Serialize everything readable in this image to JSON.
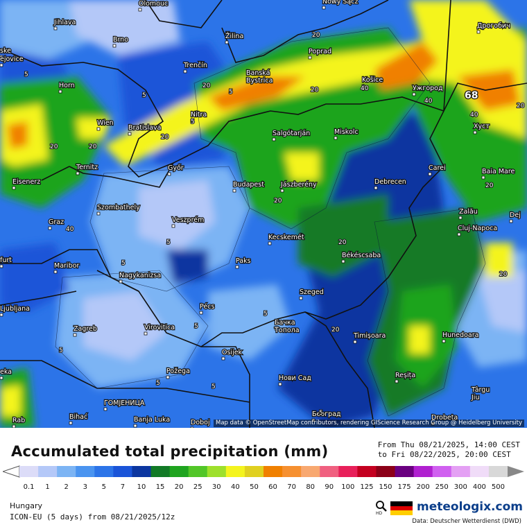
{
  "map": {
    "attribution": "Map data © OpenStreetMap contributors, rendering GIScience Research Group @ Heidelberg University",
    "max_value": "68",
    "cities": [
      {
        "name": "Olomouc"
      },
      {
        "name": "Nowy Sącz"
      },
      {
        "name": "Дрогобич"
      },
      {
        "name": "Jihlava"
      },
      {
        "name": "Brno"
      },
      {
        "name": "Žilina"
      },
      {
        "name": "Poprad"
      },
      {
        "name": "Trenčín"
      },
      {
        "name": "Banská Bystrica"
      },
      {
        "name": "Horn"
      },
      {
        "name": "Košice"
      },
      {
        "name": "Ужгород"
      },
      {
        "name": "Nitra"
      },
      {
        "name": "Wien"
      },
      {
        "name": "Bratislava"
      },
      {
        "name": "Miskolc"
      },
      {
        "name": "Salgótarján"
      },
      {
        "name": "Хуст"
      },
      {
        "name": "Ternitz"
      },
      {
        "name": "Győr"
      },
      {
        "name": "Carei"
      },
      {
        "name": "Baia Mare"
      },
      {
        "name": "Eisenerz"
      },
      {
        "name": "Budapest"
      },
      {
        "name": "Jászberény"
      },
      {
        "name": "Debrecen"
      },
      {
        "name": "Szombathely"
      },
      {
        "name": "Zalău"
      },
      {
        "name": "Dej"
      },
      {
        "name": "Graz"
      },
      {
        "name": "Veszprém"
      },
      {
        "name": "Kecskemét"
      },
      {
        "name": "Cluj-Napoca"
      },
      {
        "name": "Maribor"
      },
      {
        "name": "Paks"
      },
      {
        "name": "Békéscsaba"
      },
      {
        "name": "Nagykanizsa"
      },
      {
        "name": "Szeged"
      },
      {
        "name": "Ljubljana"
      },
      {
        "name": "Pécs"
      },
      {
        "name": "Бачка Топола"
      },
      {
        "name": "Zagreb"
      },
      {
        "name": "Virovitica"
      },
      {
        "name": "Timișoara"
      },
      {
        "name": "Hunedoara"
      },
      {
        "name": "Osijek"
      },
      {
        "name": "Požega"
      },
      {
        "name": "Нови Сад"
      },
      {
        "name": "Reșița"
      },
      {
        "name": "Târgu Jiu"
      },
      {
        "name": "ГОМЈЕНИЦА"
      },
      {
        "name": "Bihać"
      },
      {
        "name": "Banja Luka"
      },
      {
        "name": "Doboj"
      },
      {
        "name": "Београд"
      },
      {
        "name": "Drobeta"
      },
      {
        "name": "furt"
      },
      {
        "name": "ske"
      },
      {
        "name": "ejovice"
      },
      {
        "name": "Rab"
      },
      {
        "name": "eka"
      }
    ],
    "contour_labels": [
      "5",
      "5",
      "5",
      "5",
      "5",
      "5",
      "5",
      "5",
      "5",
      "20",
      "20",
      "20",
      "20",
      "20",
      "20",
      "20",
      "40",
      "40",
      "40",
      "40",
      "20",
      "20",
      "20",
      "20",
      "20",
      "5",
      "5",
      "5"
    ]
  },
  "footer": {
    "title": "Accumulated total precipitation (mm)",
    "period_from": "From Thu 08/21/2025, 14:00 CEST",
    "period_to": "to Fri 08/22/2025, 20:00 CEST",
    "region": "Hungary",
    "model": "ICON-EU (5 days) from 08/21/2025/12z",
    "brand": "meteologix.com",
    "data_source": "Data: Deutscher Wetterdienst (DWD)",
    "legend": {
      "labels": [
        "0.1",
        "1",
        "2",
        "3",
        "5",
        "7",
        "10",
        "15",
        "20",
        "25",
        "30",
        "40",
        "50",
        "60",
        "70",
        "80",
        "90",
        "100",
        "125",
        "150",
        "175",
        "200",
        "250",
        "300",
        "400",
        "500"
      ],
      "colors": [
        "#dcdcf8",
        "#b4c8f8",
        "#7cb4f4",
        "#4a94f0",
        "#2c74e8",
        "#1a54d8",
        "#0c36a0",
        "#127a26",
        "#1fa41f",
        "#52c628",
        "#9ee02c",
        "#f4f41e",
        "#e0d020",
        "#f08000",
        "#f69030",
        "#f8a870",
        "#f06080",
        "#e8205a",
        "#c40020",
        "#8c0018",
        "#6a0080",
        "#b020d0",
        "#d060f0",
        "#e4a0f4",
        "#f0dcf8",
        "#d8d8d8"
      ],
      "colors_note_arrow_left": "#ffffff",
      "colors_note_arrow_right": "#888888"
    }
  }
}
